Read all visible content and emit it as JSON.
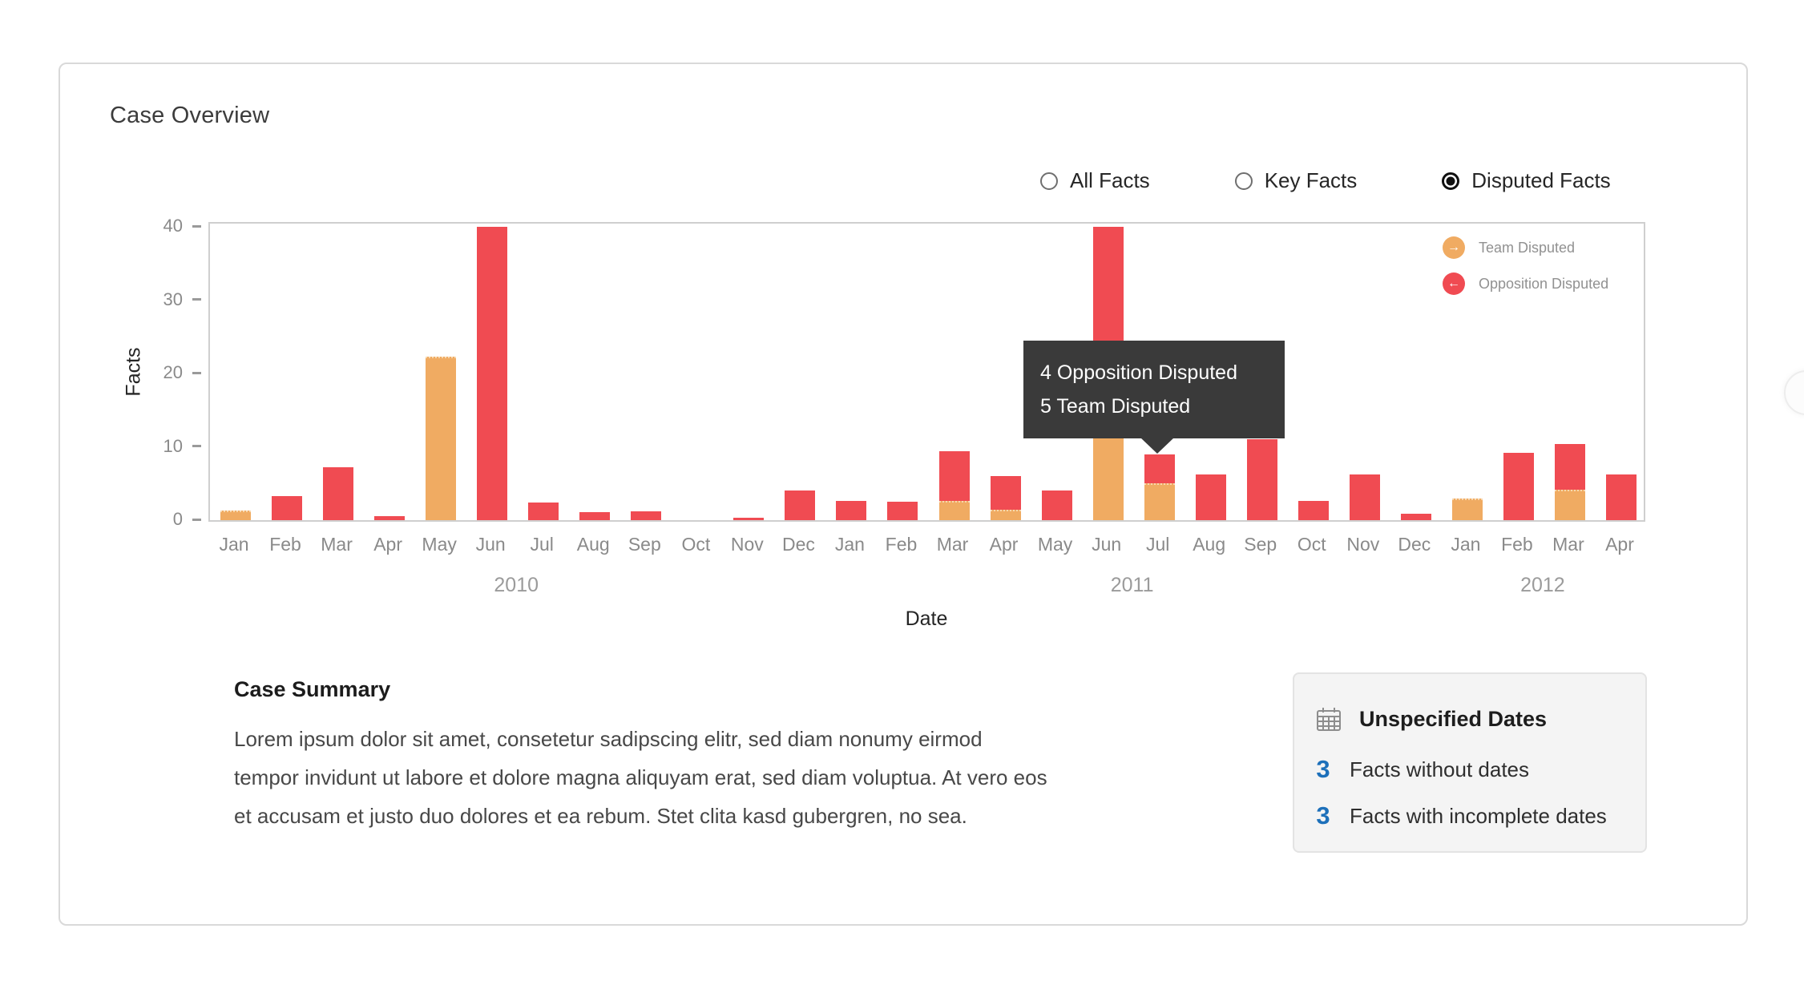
{
  "card": {
    "title": "Case Overview"
  },
  "filters": {
    "options": [
      {
        "label": "All Facts",
        "selected": false
      },
      {
        "label": "Key Facts",
        "selected": false
      },
      {
        "label": "Disputed Facts",
        "selected": true
      }
    ]
  },
  "chart_data": {
    "type": "bar",
    "stacked": true,
    "xlabel": "Date",
    "ylabel": "Facts",
    "ylim": [
      0,
      40
    ],
    "yticks": [
      0,
      10,
      20,
      30,
      40
    ],
    "grid": false,
    "legend_position": "top-right",
    "categories": [
      "Jan",
      "Feb",
      "Mar",
      "Apr",
      "May",
      "Jun",
      "Jul",
      "Aug",
      "Sep",
      "Oct",
      "Nov",
      "Dec",
      "Jan",
      "Feb",
      "Mar",
      "Apr",
      "May",
      "Jun",
      "Jul",
      "Aug",
      "Sep",
      "Oct",
      "Nov",
      "Dec",
      "Jan",
      "Feb",
      "Mar",
      "Apr"
    ],
    "year_groups": [
      {
        "label": "2010",
        "start": 0,
        "count": 12
      },
      {
        "label": "2011",
        "start": 12,
        "count": 12
      },
      {
        "label": "2012",
        "start": 24,
        "count": 4
      }
    ],
    "series": [
      {
        "name": "Team Disputed",
        "color": "#f0ab62",
        "values": [
          1.3,
          0,
          0,
          0,
          22.3,
          0,
          0,
          0,
          0,
          0,
          0,
          0,
          0,
          0,
          2.6,
          1.4,
          0,
          15,
          5,
          0,
          0,
          0,
          0,
          0,
          2.9,
          0,
          4.2,
          0
        ]
      },
      {
        "name": "Opposition Disputed",
        "color": "#f04b52",
        "values": [
          0,
          3.3,
          7.2,
          0.5,
          0,
          40,
          2.4,
          1.1,
          1.2,
          0,
          0.3,
          4,
          2.6,
          2.5,
          6.8,
          4.6,
          4.1,
          25,
          4,
          6.2,
          11,
          2.6,
          6.2,
          0.9,
          0,
          9.2,
          6.2,
          6.2
        ]
      }
    ],
    "legend": [
      {
        "name": "Team Disputed",
        "color": "#f0ab62",
        "icon": "arrow-right",
        "glyph": "→"
      },
      {
        "name": "Opposition Disputed",
        "color": "#f04b52",
        "icon": "arrow-left",
        "glyph": "←"
      }
    ],
    "tooltip": {
      "lines": [
        "4 Opposition Disputed",
        "5 Team Disputed"
      ],
      "month_index": 18,
      "background": "#3a3a3a"
    }
  },
  "summary": {
    "heading": "Case Summary",
    "text": "Lorem ipsum dolor sit amet, consetetur sadipscing elitr, sed diam nonumy eirmod tempor invidunt ut labore et dolore magna aliquyam erat, sed diam voluptua. At vero eos et accusam et justo duo dolores et ea rebum. Stet clita kasd gubergren, no sea."
  },
  "unspecified_dates": {
    "heading": "Unspecified Dates",
    "rows": [
      {
        "count": "3",
        "label": "Facts without dates"
      },
      {
        "count": "3",
        "label": "Facts with incomplete dates"
      }
    ]
  },
  "colors": {
    "team": "#f0ab62",
    "opposition": "#f04b52",
    "count_blue": "#1d70ba",
    "tooltip_bg": "#3a3a3a",
    "axis_gray": "#8a8a8a"
  }
}
